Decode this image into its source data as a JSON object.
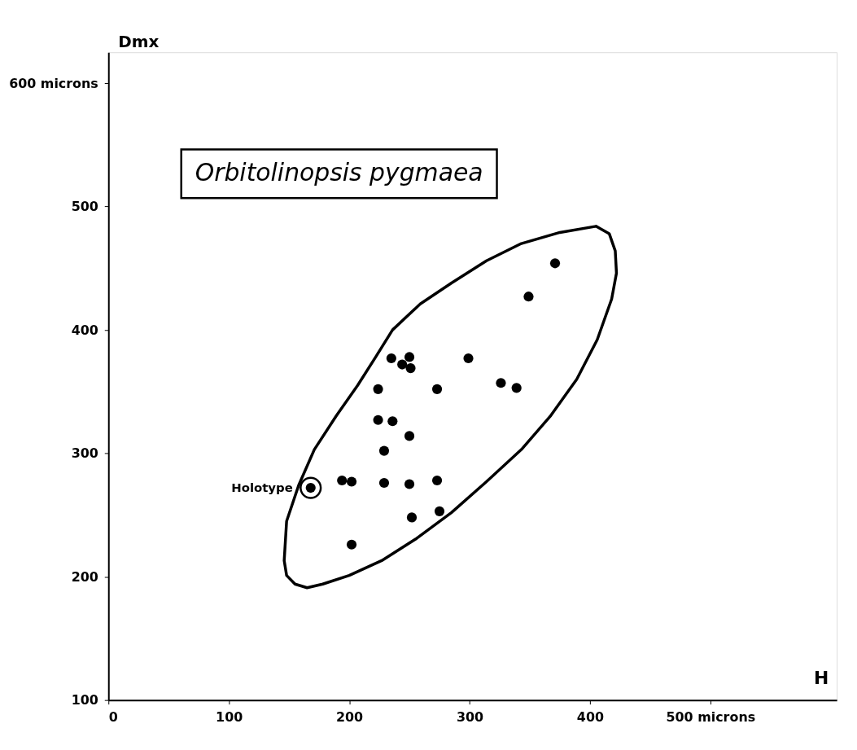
{
  "chart_data": {
    "type": "scatter",
    "title": "Orbitolinopsis pygmaea",
    "xlabel": "H",
    "ylabel": "Dmx",
    "xlim": [
      0,
      605
    ],
    "ylim": [
      100,
      625
    ],
    "xticks": [
      0,
      100,
      200,
      300,
      400,
      {
        "value": 500,
        "label": "500 microns"
      }
    ],
    "yticks": [
      100,
      200,
      300,
      400,
      500,
      {
        "value": 600,
        "label": "600 microns"
      }
    ],
    "grid": false,
    "marker": "circle",
    "annotations": [
      {
        "text": "Holotype",
        "x": 168,
        "y": 272
      }
    ],
    "series": [
      {
        "color": "#000000",
        "x": [
          371,
          349,
          299,
          326,
          339,
          235,
          250,
          244,
          251,
          224,
          273,
          224,
          236,
          250,
          229,
          194,
          202,
          229,
          250,
          273,
          252,
          275,
          202,
          168
        ],
        "values": [
          454,
          427,
          377,
          357,
          353,
          377,
          378,
          372,
          369,
          352,
          352,
          327,
          326,
          314,
          302,
          278,
          277,
          276,
          275,
          278,
          248,
          253,
          226,
          272
        ]
      }
    ]
  }
}
